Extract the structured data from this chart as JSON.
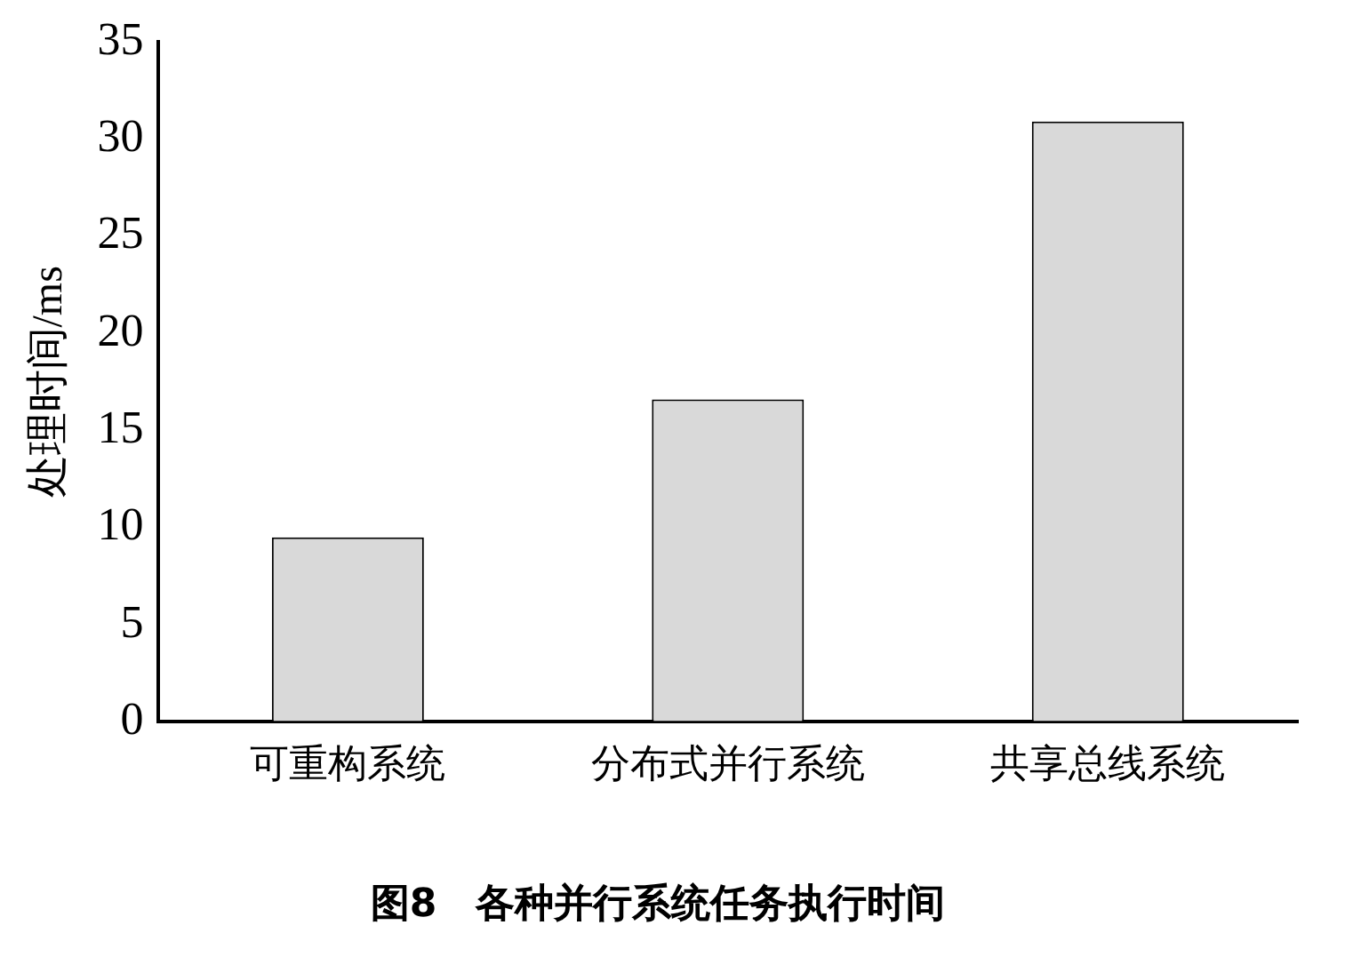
{
  "chart_data": {
    "type": "bar",
    "title": "图8　各种并行系统任务执行时间",
    "ylabel": "处理时间/ms",
    "categories": [
      "可重构系统",
      "分布式并行系统",
      "共享总线系统"
    ],
    "values": [
      9.5,
      16.6,
      30.9
    ],
    "color": "#d9d9d9",
    "ylim": [
      0,
      35
    ],
    "yticks": [
      0,
      5,
      10,
      15,
      20,
      25,
      30,
      35
    ],
    "grid": false,
    "legend": false
  }
}
